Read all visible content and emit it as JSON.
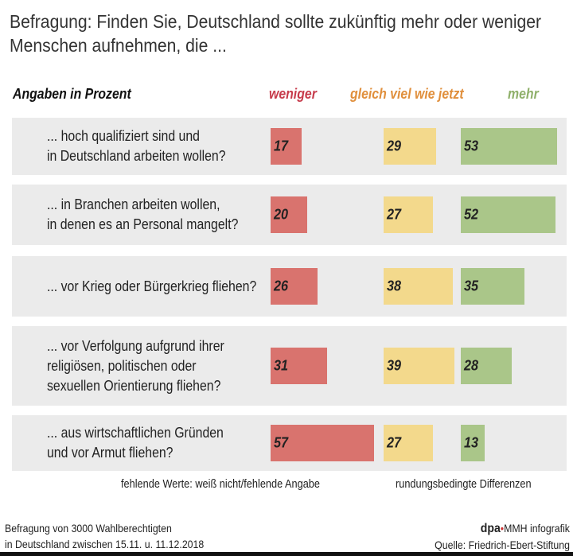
{
  "title": "Befragung: Finden Sie, Deutschland sollte zukünftig mehr oder weniger Menschen aufnehmen, die ...",
  "chart_data": {
    "type": "bar",
    "unit_label": "Angaben in Prozent",
    "categories": [
      [
        "... hoch qualifiziert sind und",
        "in Deutschland arbeiten wollen?"
      ],
      [
        "... in Branchen arbeiten wollen,",
        "in denen es an Personal mangelt?"
      ],
      [
        "... vor Krieg oder Bürgerkrieg fliehen?"
      ],
      [
        "... vor Verfolgung aufgrund ihrer",
        "religiösen, politischen oder",
        "sexuellen Orientierung fliehen?"
      ],
      [
        "... aus wirtschaftlichen Gründen",
        "und vor Armut fliehen?"
      ]
    ],
    "series": [
      {
        "name": "weniger",
        "values": [
          17,
          20,
          26,
          31,
          57
        ],
        "color": "#d9736e",
        "label_color": "#c73c4c"
      },
      {
        "name": "gleich viel wie jetzt",
        "values": [
          29,
          27,
          38,
          39,
          27
        ],
        "color": "#f3d98c",
        "label_color": "#e08f3c"
      },
      {
        "name": "mehr",
        "values": [
          53,
          52,
          35,
          28,
          13
        ],
        "color": "#aac689",
        "label_color": "#8fb06a"
      }
    ]
  },
  "notes": {
    "missing": "fehlende Werte: weiß nicht/fehlende Angabe",
    "rounding": "rundungsbedingte Differenzen"
  },
  "footer": {
    "survey": [
      "Befragung von 3000 Wahlberechtigten",
      "in Deutschland zwischen 15.11. u. 11.12.2018"
    ],
    "brand_dpa": "dpa",
    "brand_rest": "MMH infografik",
    "source": "Quelle: Friedrich-Ebert-Stiftung"
  }
}
